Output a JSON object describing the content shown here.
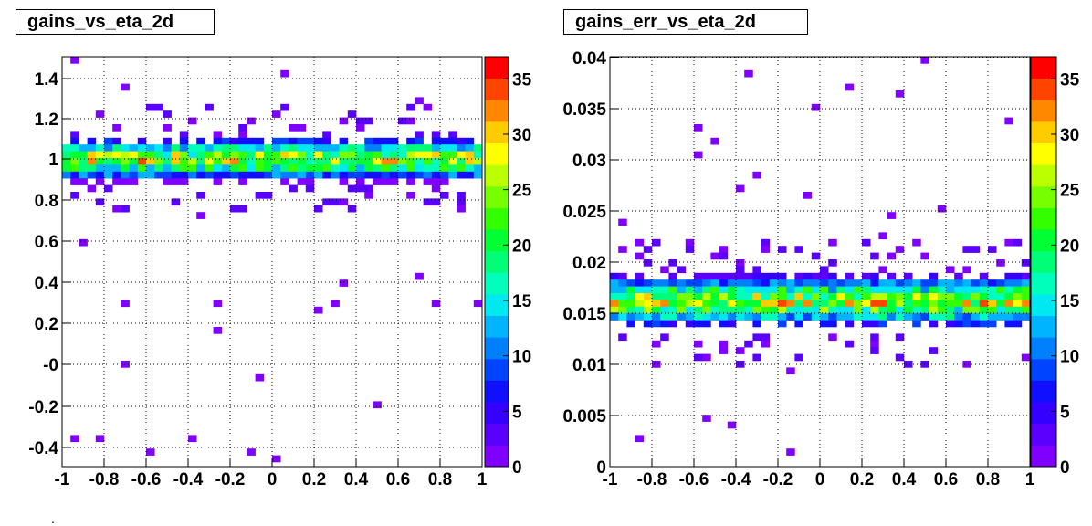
{
  "chart_data": [
    {
      "type": "heatmap",
      "title": "gains_vs_eta_2d",
      "xlabel": "",
      "ylabel": "",
      "xlim": [
        -1,
        1
      ],
      "ylim": [
        -0.5,
        1.5
      ],
      "x_ticks": [
        "-1",
        "-0.8",
        "-0.6",
        "-0.4",
        "-0.2",
        "0",
        "0.2",
        "0.4",
        "0.6",
        "0.8",
        "1"
      ],
      "y_ticks": [
        "-0.4",
        "-0.2",
        "-0",
        "0.2",
        "0.4",
        "0.6",
        "0.8",
        "1",
        "1.2",
        "1.4"
      ],
      "colorbar": {
        "min": 0,
        "max": 37,
        "ticks": [
          "0",
          "5",
          "10",
          "15",
          "20",
          "25",
          "30",
          "35"
        ]
      },
      "grid": true,
      "legend": "colorbar-right"
    },
    {
      "type": "heatmap",
      "title": "gains_err_vs_eta_2d",
      "xlabel": "",
      "ylabel": "",
      "xlim": [
        -1,
        1
      ],
      "ylim": [
        0,
        0.04
      ],
      "x_ticks": [
        "-1",
        "-0.8",
        "-0.6",
        "-0.4",
        "-0.2",
        "0",
        "0.2",
        "0.4",
        "0.6",
        "0.8",
        "1"
      ],
      "y_ticks": [
        "0",
        "0.005",
        "0.01",
        "0.015",
        "0.02",
        "0.025",
        "0.03",
        "0.035",
        "0.04"
      ],
      "colorbar": {
        "min": 0,
        "max": 37,
        "ticks": [
          "0",
          "5",
          "10",
          "15",
          "20",
          "25",
          "30",
          "35"
        ]
      },
      "grid": true,
      "legend": "colorbar-right"
    }
  ],
  "footer_mark": "."
}
